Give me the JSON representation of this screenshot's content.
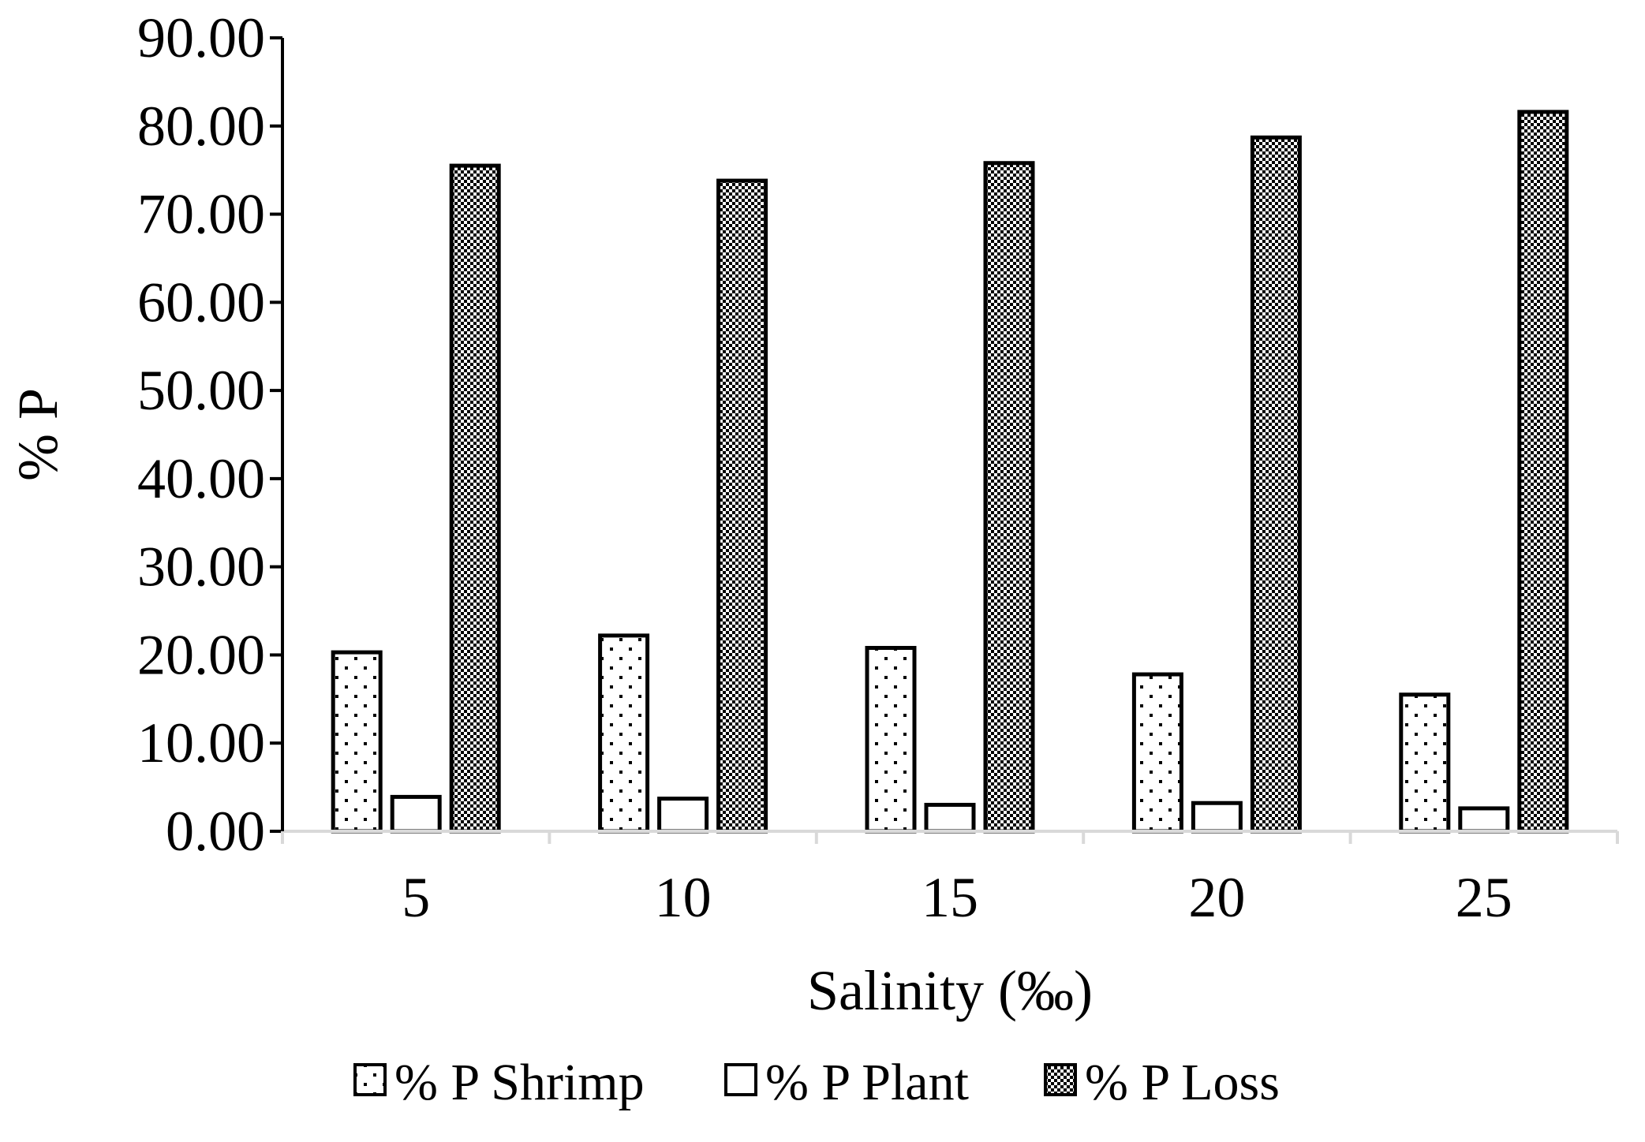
{
  "chart_data": {
    "type": "bar",
    "title": "",
    "xlabel": "Salinity (‰)",
    "ylabel": "% P",
    "categories": [
      "5",
      "10",
      "15",
      "20",
      "25"
    ],
    "ylim": [
      0,
      90
    ],
    "y_ticks": [
      "0.00",
      "10.00",
      "20.00",
      "30.00",
      "40.00",
      "50.00",
      "60.00",
      "70.00",
      "80.00",
      "90.00"
    ],
    "grid": false,
    "legend_position": "bottom",
    "series": [
      {
        "name": "% P Shrimp",
        "pattern": "dots",
        "values": [
          20.3,
          22.2,
          20.8,
          17.8,
          15.5
        ]
      },
      {
        "name": "% P Plant",
        "pattern": "none",
        "values": [
          3.9,
          3.7,
          3.0,
          3.2,
          2.6
        ]
      },
      {
        "name": "% P Loss",
        "pattern": "checker",
        "values": [
          75.5,
          73.8,
          75.8,
          78.7,
          81.6
        ]
      }
    ],
    "colors": {
      "stroke": "#000000",
      "axis": "#d9d9d9",
      "fill": "#ffffff"
    }
  }
}
